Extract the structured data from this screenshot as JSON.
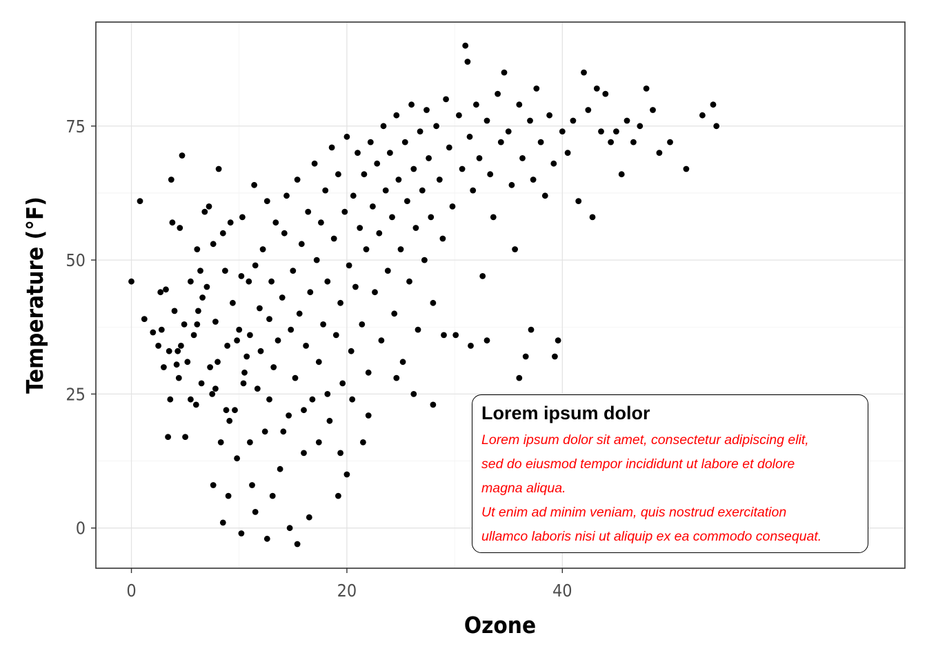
{
  "chart_data": {
    "type": "scatter",
    "title": "",
    "xlabel": "Ozone",
    "ylabel": "Temperature (°F)",
    "xlim": [
      -3.3,
      71.8
    ],
    "ylim": [
      -7.5,
      94.4
    ],
    "x_ticks": [
      0,
      20,
      40
    ],
    "y_ticks": [
      0,
      25,
      50,
      75
    ],
    "x_tick_labels": [
      "0",
      "20",
      "40"
    ],
    "y_tick_labels": [
      "0",
      "25",
      "50",
      "75"
    ],
    "grid": true,
    "point_color": "#000000",
    "points": [
      [
        0.0,
        46.0
      ],
      [
        0.8,
        61.0
      ],
      [
        1.2,
        39.0
      ],
      [
        2.0,
        36.5
      ],
      [
        2.5,
        34.0
      ],
      [
        2.7,
        44.0
      ],
      [
        2.8,
        37.0
      ],
      [
        3.0,
        30.0
      ],
      [
        3.2,
        44.5
      ],
      [
        3.4,
        17.0
      ],
      [
        3.5,
        33.0
      ],
      [
        3.6,
        24.0
      ],
      [
        3.7,
        65.0
      ],
      [
        3.8,
        57.0
      ],
      [
        4.0,
        40.5
      ],
      [
        4.2,
        30.5
      ],
      [
        4.4,
        28.0
      ],
      [
        4.5,
        56.0
      ],
      [
        4.6,
        34.0
      ],
      [
        4.7,
        69.5
      ],
      [
        4.9,
        38.0
      ],
      [
        5.0,
        17.0
      ],
      [
        5.2,
        31.0
      ],
      [
        5.5,
        46.0
      ],
      [
        5.8,
        36.0
      ],
      [
        6.0,
        23.0
      ],
      [
        6.1,
        52.0
      ],
      [
        6.2,
        40.5
      ],
      [
        6.4,
        48.0
      ],
      [
        6.6,
        43.0
      ],
      [
        6.8,
        59.0
      ],
      [
        7.0,
        45.0
      ],
      [
        7.2,
        60.0
      ],
      [
        7.3,
        30.0
      ],
      [
        7.5,
        25.0
      ],
      [
        7.6,
        53.0
      ],
      [
        7.8,
        38.5
      ],
      [
        8.0,
        31.0
      ],
      [
        8.1,
        67.0
      ],
      [
        8.3,
        16.0
      ],
      [
        8.5,
        55.0
      ],
      [
        8.7,
        48.0
      ],
      [
        8.9,
        34.0
      ],
      [
        9.0,
        6.0
      ],
      [
        9.2,
        57.0
      ],
      [
        9.4,
        42.0
      ],
      [
        9.6,
        22.0
      ],
      [
        9.8,
        35.0
      ],
      [
        10.0,
        37.0
      ],
      [
        10.2,
        47.0
      ],
      [
        10.3,
        58.0
      ],
      [
        10.5,
        29.0
      ],
      [
        10.7,
        32.0
      ],
      [
        10.9,
        46.0
      ],
      [
        11.0,
        36.0
      ],
      [
        11.2,
        8.0
      ],
      [
        11.4,
        64.0
      ],
      [
        11.5,
        49.0
      ],
      [
        11.7,
        26.0
      ],
      [
        11.9,
        41.0
      ],
      [
        12.0,
        33.0
      ],
      [
        12.2,
        52.0
      ],
      [
        12.4,
        18.0
      ],
      [
        12.6,
        61.0
      ],
      [
        12.8,
        39.0
      ],
      [
        13.0,
        46.0
      ],
      [
        13.2,
        30.0
      ],
      [
        13.4,
        57.0
      ],
      [
        13.6,
        35.0
      ],
      [
        13.8,
        11.0
      ],
      [
        14.0,
        43.0
      ],
      [
        14.2,
        55.0
      ],
      [
        14.4,
        62.0
      ],
      [
        14.6,
        21.0
      ],
      [
        14.8,
        37.0
      ],
      [
        15.0,
        48.0
      ],
      [
        15.2,
        28.0
      ],
      [
        15.4,
        65.0
      ],
      [
        15.6,
        40.0
      ],
      [
        15.8,
        53.0
      ],
      [
        16.0,
        14.0
      ],
      [
        16.2,
        34.0
      ],
      [
        16.4,
        59.0
      ],
      [
        16.6,
        44.0
      ],
      [
        16.8,
        24.0
      ],
      [
        17.0,
        68.0
      ],
      [
        17.2,
        50.0
      ],
      [
        17.4,
        31.0
      ],
      [
        17.6,
        57.0
      ],
      [
        17.8,
        38.0
      ],
      [
        18.0,
        63.0
      ],
      [
        18.2,
        46.0
      ],
      [
        18.4,
        20.0
      ],
      [
        18.6,
        71.0
      ],
      [
        18.8,
        54.0
      ],
      [
        19.0,
        36.0
      ],
      [
        19.2,
        66.0
      ],
      [
        19.4,
        42.0
      ],
      [
        19.6,
        27.0
      ],
      [
        19.8,
        59.0
      ],
      [
        20.0,
        73.0
      ],
      [
        20.2,
        49.0
      ],
      [
        20.4,
        33.0
      ],
      [
        20.6,
        62.0
      ],
      [
        20.8,
        45.0
      ],
      [
        21.0,
        70.0
      ],
      [
        21.2,
        56.0
      ],
      [
        21.4,
        38.0
      ],
      [
        21.6,
        66.0
      ],
      [
        21.8,
        52.0
      ],
      [
        22.0,
        29.0
      ],
      [
        22.2,
        72.0
      ],
      [
        22.4,
        60.0
      ],
      [
        22.6,
        44.0
      ],
      [
        22.8,
        68.0
      ],
      [
        23.0,
        55.0
      ],
      [
        23.2,
        35.0
      ],
      [
        23.4,
        75.0
      ],
      [
        23.6,
        63.0
      ],
      [
        23.8,
        48.0
      ],
      [
        24.0,
        70.0
      ],
      [
        24.2,
        58.0
      ],
      [
        24.4,
        40.0
      ],
      [
        24.6,
        77.0
      ],
      [
        24.8,
        65.0
      ],
      [
        25.0,
        52.0
      ],
      [
        25.2,
        31.0
      ],
      [
        25.4,
        72.0
      ],
      [
        25.6,
        61.0
      ],
      [
        25.8,
        46.0
      ],
      [
        26.0,
        79.0
      ],
      [
        26.2,
        67.0
      ],
      [
        26.4,
        56.0
      ],
      [
        26.6,
        37.0
      ],
      [
        26.8,
        74.0
      ],
      [
        27.0,
        63.0
      ],
      [
        27.2,
        50.0
      ],
      [
        27.4,
        78.0
      ],
      [
        27.6,
        69.0
      ],
      [
        27.8,
        58.0
      ],
      [
        28.0,
        42.0
      ],
      [
        28.3,
        75.0
      ],
      [
        28.6,
        65.0
      ],
      [
        28.9,
        54.0
      ],
      [
        29.2,
        80.0
      ],
      [
        29.5,
        71.0
      ],
      [
        29.8,
        60.0
      ],
      [
        30.1,
        36.0
      ],
      [
        30.4,
        77.0
      ],
      [
        30.7,
        67.0
      ],
      [
        31.0,
        90.0
      ],
      [
        31.2,
        87.0
      ],
      [
        31.4,
        73.0
      ],
      [
        31.7,
        63.0
      ],
      [
        32.0,
        79.0
      ],
      [
        32.3,
        69.0
      ],
      [
        32.6,
        47.0
      ],
      [
        33.0,
        76.0
      ],
      [
        33.3,
        66.0
      ],
      [
        33.6,
        58.0
      ],
      [
        34.0,
        81.0
      ],
      [
        34.3,
        72.0
      ],
      [
        34.6,
        85.0
      ],
      [
        35.0,
        74.0
      ],
      [
        35.3,
        64.0
      ],
      [
        35.6,
        52.0
      ],
      [
        36.0,
        79.0
      ],
      [
        36.3,
        69.0
      ],
      [
        36.6,
        32.0
      ],
      [
        37.0,
        76.0
      ],
      [
        37.3,
        65.0
      ],
      [
        37.6,
        82.0
      ],
      [
        38.0,
        72.0
      ],
      [
        38.4,
        62.0
      ],
      [
        38.8,
        77.0
      ],
      [
        39.2,
        68.0
      ],
      [
        39.6,
        35.0
      ],
      [
        40.0,
        74.0
      ],
      [
        40.5,
        70.0
      ],
      [
        41.0,
        76.0
      ],
      [
        41.5,
        61.0
      ],
      [
        42.0,
        85.0
      ],
      [
        42.4,
        78.0
      ],
      [
        42.8,
        58.0
      ],
      [
        43.2,
        82.0
      ],
      [
        43.6,
        74.0
      ],
      [
        44.0,
        81.0
      ],
      [
        44.5,
        72.0
      ],
      [
        45.0,
        74.0
      ],
      [
        45.5,
        66.0
      ],
      [
        46.0,
        76.0
      ],
      [
        46.6,
        72.0
      ],
      [
        47.2,
        75.0
      ],
      [
        47.8,
        82.0
      ],
      [
        48.4,
        78.0
      ],
      [
        49.0,
        70.0
      ],
      [
        50.0,
        72.0
      ],
      [
        51.5,
        67.0
      ],
      [
        53.0,
        77.0
      ],
      [
        54.0,
        79.0
      ],
      [
        54.3,
        75.0
      ],
      [
        8.5,
        1.0
      ],
      [
        10.2,
        -1.0
      ],
      [
        11.5,
        3.0
      ],
      [
        12.6,
        -2.0
      ],
      [
        15.4,
        -3.0
      ],
      [
        16.5,
        2.0
      ],
      [
        19.2,
        6.0
      ],
      [
        20.0,
        10.0
      ],
      [
        14.7,
        0.0
      ],
      [
        13.1,
        6.0
      ],
      [
        9.8,
        13.0
      ],
      [
        7.6,
        8.0
      ],
      [
        9.1,
        20.0
      ],
      [
        11.0,
        16.0
      ],
      [
        17.4,
        16.0
      ],
      [
        19.4,
        14.0
      ],
      [
        21.5,
        16.0
      ],
      [
        6.5,
        27.0
      ],
      [
        5.5,
        24.0
      ],
      [
        4.3,
        33.0
      ],
      [
        6.1,
        38.0
      ],
      [
        7.8,
        26.0
      ],
      [
        8.8,
        22.0
      ],
      [
        10.4,
        27.0
      ],
      [
        12.8,
        24.0
      ],
      [
        14.1,
        18.0
      ],
      [
        16.0,
        22.0
      ],
      [
        18.2,
        25.0
      ],
      [
        20.5,
        24.0
      ],
      [
        22.0,
        21.0
      ],
      [
        24.6,
        28.0
      ],
      [
        26.2,
        25.0
      ],
      [
        28.0,
        23.0
      ],
      [
        29.0,
        36.0
      ],
      [
        31.5,
        34.0
      ],
      [
        33.0,
        35.0
      ],
      [
        36.0,
        28.0
      ],
      [
        37.1,
        37.0
      ],
      [
        39.3,
        32.0
      ]
    ]
  },
  "annotation": {
    "title": "Lorem ipsum dolor",
    "lines": [
      "Lorem ipsum dolor sit amet, consectetur adipiscing elit,",
      "sed do eiusmod tempor incididunt ut labore et dolore",
      "magna aliqua.",
      "Ut  enim ad minim veniam,  quis nostrud exercitation",
      "ullamco laboris nisi ut aliquip ex ea commodo consequat."
    ],
    "text_color": "#ff0000"
  }
}
